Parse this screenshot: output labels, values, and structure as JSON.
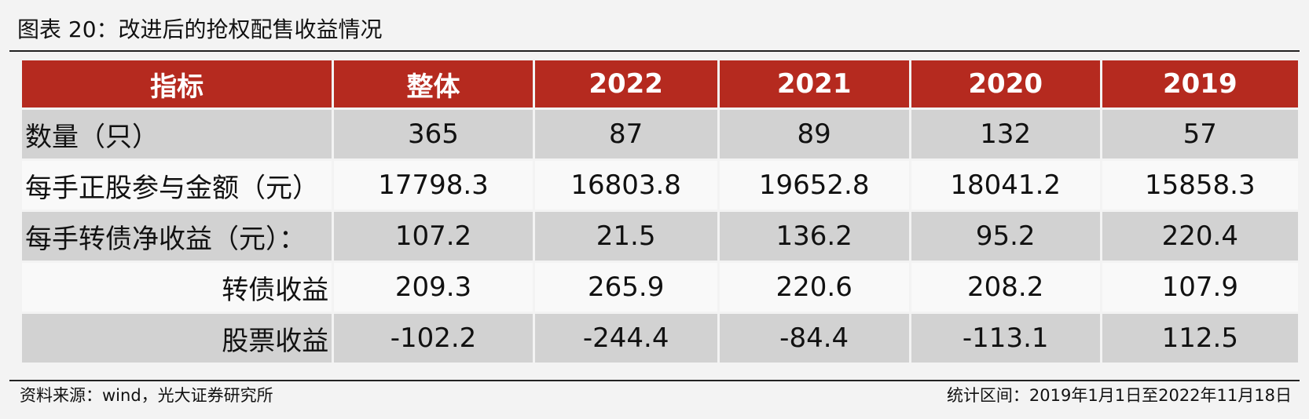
{
  "header": {
    "title": "图表 20：改进后的抢权配售收益情况"
  },
  "table": {
    "columns": [
      "指标",
      "整体",
      "2022",
      "2021",
      "2020",
      "2019"
    ],
    "rows": [
      [
        "数量（只）",
        "365",
        "87",
        "89",
        "132",
        "57"
      ],
      [
        "每手正股参与金额（元）",
        "17798.3",
        "16803.8",
        "19652.8",
        "18041.2",
        "15858.3"
      ],
      [
        "每手转债净收益（元）：",
        "107.2",
        "21.5",
        "136.2",
        "95.2",
        "220.4"
      ],
      [
        "转债收益",
        "209.3",
        "265.9",
        "220.6",
        "208.2",
        "107.9"
      ],
      [
        "股票收益",
        "-102.2",
        "-244.4",
        "-84.4",
        "-113.1",
        "112.5"
      ]
    ]
  },
  "footer": {
    "source": "资料来源：wind，光大证券研究所",
    "note": "统计区间：2019年1月1日至2022年11月18日"
  }
}
